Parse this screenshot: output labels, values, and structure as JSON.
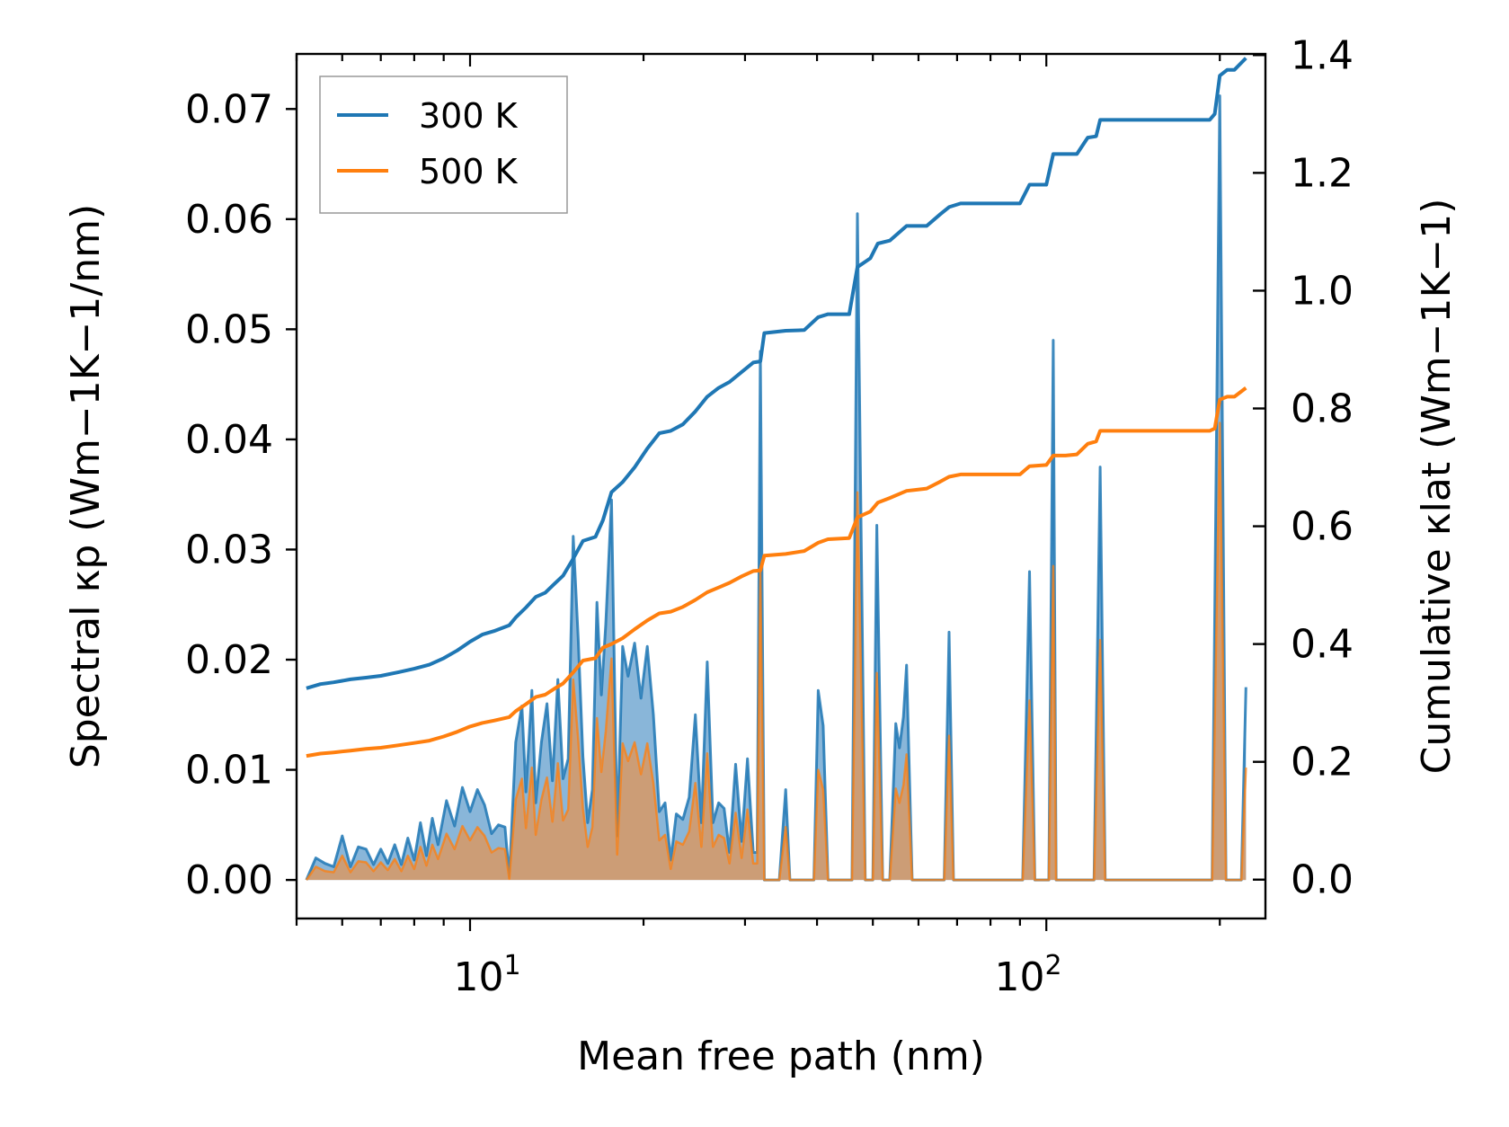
{
  "chart_data": {
    "type": "line",
    "xscale": "log",
    "xlim": [
      5.0,
      240
    ],
    "xlabel": "Mean free path (nm)",
    "ylabel_left": "Spectral κp (Wm−1K−1/nm)",
    "ylabel_right": "Cumulative κlat (Wm−1K−1)",
    "ylim_left": [
      -0.0035,
      0.075
    ],
    "ylim_right": [
      -0.066,
      1.402
    ],
    "yticks_left": [
      "0.00",
      "0.01",
      "0.02",
      "0.03",
      "0.04",
      "0.05",
      "0.06",
      "0.07"
    ],
    "yticks_right": [
      "0.0",
      "0.2",
      "0.4",
      "0.6",
      "0.8",
      "1.0",
      "1.2",
      "1.4"
    ],
    "xticks_major": [
      {
        "value": 10,
        "base": "10",
        "exp": "1"
      },
      {
        "value": 100,
        "base": "10",
        "exp": "2"
      }
    ],
    "colors": {
      "s300": "#1f77b4",
      "s500": "#ff7f0e",
      "fill300": "#4a8fc4",
      "fill500": "#d49a6a"
    },
    "legend": {
      "position": "top-left",
      "entries": [
        "300 K",
        "500 K"
      ]
    },
    "spectral_300K": [
      [
        5.2,
        0.0
      ],
      [
        5.4,
        0.002
      ],
      [
        5.6,
        0.0015
      ],
      [
        5.8,
        0.0012
      ],
      [
        6.0,
        0.004
      ],
      [
        6.2,
        0.0012
      ],
      [
        6.4,
        0.003
      ],
      [
        6.6,
        0.0028
      ],
      [
        6.8,
        0.0014
      ],
      [
        7.0,
        0.0028
      ],
      [
        7.2,
        0.0015
      ],
      [
        7.4,
        0.0032
      ],
      [
        7.6,
        0.0014
      ],
      [
        7.8,
        0.0038
      ],
      [
        8.0,
        0.0018
      ],
      [
        8.2,
        0.0052
      ],
      [
        8.4,
        0.0022
      ],
      [
        8.6,
        0.0056
      ],
      [
        8.8,
        0.0032
      ],
      [
        9.1,
        0.0072
      ],
      [
        9.4,
        0.0049
      ],
      [
        9.7,
        0.0084
      ],
      [
        10.0,
        0.0062
      ],
      [
        10.3,
        0.0082
      ],
      [
        10.6,
        0.0068
      ],
      [
        10.9,
        0.0042
      ],
      [
        11.2,
        0.005
      ],
      [
        11.5,
        0.0048
      ],
      [
        11.7,
        0.0002
      ],
      [
        12.0,
        0.0125
      ],
      [
        12.3,
        0.0158
      ],
      [
        12.5,
        0.008
      ],
      [
        12.8,
        0.0172
      ],
      [
        13.0,
        0.007
      ],
      [
        13.3,
        0.0125
      ],
      [
        13.6,
        0.016
      ],
      [
        13.9,
        0.009
      ],
      [
        14.2,
        0.0182
      ],
      [
        14.5,
        0.0092
      ],
      [
        14.8,
        0.011
      ],
      [
        15.1,
        0.0312
      ],
      [
        15.4,
        0.022
      ],
      [
        15.7,
        0.0112
      ],
      [
        16.0,
        0.0052
      ],
      [
        16.3,
        0.0082
      ],
      [
        16.6,
        0.0252
      ],
      [
        16.9,
        0.0168
      ],
      [
        17.2,
        0.0232
      ],
      [
        17.6,
        0.0345
      ],
      [
        18.0,
        0.004
      ],
      [
        18.4,
        0.0212
      ],
      [
        18.8,
        0.0185
      ],
      [
        19.3,
        0.0215
      ],
      [
        19.8,
        0.0165
      ],
      [
        20.3,
        0.0212
      ],
      [
        20.8,
        0.015
      ],
      [
        21.3,
        0.0062
      ],
      [
        21.8,
        0.007
      ],
      [
        22.3,
        0.0018
      ],
      [
        22.8,
        0.006
      ],
      [
        23.4,
        0.0055
      ],
      [
        24.0,
        0.0075
      ],
      [
        24.6,
        0.015
      ],
      [
        25.2,
        0.0052
      ],
      [
        25.8,
        0.0198
      ],
      [
        26.4,
        0.0052
      ],
      [
        27.0,
        0.007
      ],
      [
        27.6,
        0.0065
      ],
      [
        28.2,
        0.0025
      ],
      [
        28.9,
        0.0105
      ],
      [
        29.6,
        0.0035
      ],
      [
        30.3,
        0.011
      ],
      [
        31.0,
        0.0025
      ],
      [
        31.5,
        0.0025
      ],
      [
        31.9,
        0.048
      ],
      [
        32.4,
        0.0
      ],
      [
        33.3,
        0.0
      ],
      [
        34.4,
        0.0
      ],
      [
        35.3,
        0.0082
      ],
      [
        35.9,
        0.0
      ],
      [
        37.0,
        0.0
      ],
      [
        38.2,
        0.0
      ],
      [
        39.5,
        0.0
      ],
      [
        40.2,
        0.0172
      ],
      [
        41.0,
        0.014
      ],
      [
        41.8,
        0.0
      ],
      [
        43.0,
        0.0
      ],
      [
        44.8,
        0.0
      ],
      [
        46.0,
        0.0
      ],
      [
        47.0,
        0.0605
      ],
      [
        48.5,
        0.0
      ],
      [
        50.0,
        0.0
      ],
      [
        50.8,
        0.0322
      ],
      [
        52.0,
        0.0
      ],
      [
        53.5,
        0.0
      ],
      [
        54.8,
        0.0142
      ],
      [
        55.6,
        0.012
      ],
      [
        56.5,
        0.0148
      ],
      [
        57.2,
        0.0195
      ],
      [
        58.5,
        0.0
      ],
      [
        60.0,
        0.0
      ],
      [
        62.5,
        0.0
      ],
      [
        65.0,
        0.0
      ],
      [
        66.5,
        0.0
      ],
      [
        67.8,
        0.0225
      ],
      [
        69.0,
        0.0
      ],
      [
        71.0,
        0.0
      ],
      [
        80.0,
        0.0
      ],
      [
        88.0,
        0.0
      ],
      [
        91.0,
        0.0
      ],
      [
        93.5,
        0.028
      ],
      [
        95.5,
        0.0
      ],
      [
        99.0,
        0.0
      ],
      [
        101.0,
        0.0
      ],
      [
        102.8,
        0.049
      ],
      [
        104.0,
        0.0
      ],
      [
        108.0,
        0.0
      ],
      [
        113.0,
        0.0
      ],
      [
        117.0,
        0.0
      ],
      [
        121.0,
        0.0
      ],
      [
        124.0,
        0.0375
      ],
      [
        126.5,
        0.0
      ],
      [
        140.0,
        0.0
      ],
      [
        160.0,
        0.0
      ],
      [
        180.0,
        0.0
      ],
      [
        190.0,
        0.0
      ],
      [
        194.0,
        0.0
      ],
      [
        200.0,
        0.0712
      ],
      [
        205.0,
        0.0
      ],
      [
        212.0,
        0.0
      ],
      [
        218.0,
        0.0
      ],
      [
        222.0,
        0.0175
      ]
    ],
    "spectral_500K": [
      [
        5.2,
        0.0
      ],
      [
        5.4,
        0.0012
      ],
      [
        5.6,
        0.0008
      ],
      [
        5.8,
        0.0007
      ],
      [
        6.0,
        0.0022
      ],
      [
        6.2,
        0.0007
      ],
      [
        6.4,
        0.0017
      ],
      [
        6.6,
        0.0016
      ],
      [
        6.8,
        0.0008
      ],
      [
        7.0,
        0.0016
      ],
      [
        7.2,
        0.0009
      ],
      [
        7.4,
        0.0019
      ],
      [
        7.6,
        0.0008
      ],
      [
        7.8,
        0.0022
      ],
      [
        8.0,
        0.001
      ],
      [
        8.2,
        0.003
      ],
      [
        8.4,
        0.0013
      ],
      [
        8.6,
        0.0032
      ],
      [
        8.8,
        0.0019
      ],
      [
        9.1,
        0.0042
      ],
      [
        9.4,
        0.0028
      ],
      [
        9.7,
        0.0049
      ],
      [
        10.0,
        0.0036
      ],
      [
        10.3,
        0.0048
      ],
      [
        10.6,
        0.004
      ],
      [
        10.9,
        0.0025
      ],
      [
        11.2,
        0.0029
      ],
      [
        11.5,
        0.0028
      ],
      [
        11.7,
        0.0001
      ],
      [
        12.0,
        0.0073
      ],
      [
        12.3,
        0.0092
      ],
      [
        12.5,
        0.0047
      ],
      [
        12.8,
        0.0102
      ],
      [
        13.0,
        0.0041
      ],
      [
        13.3,
        0.0073
      ],
      [
        13.6,
        0.0093
      ],
      [
        13.9,
        0.0053
      ],
      [
        14.2,
        0.0106
      ],
      [
        14.5,
        0.0054
      ],
      [
        14.8,
        0.0064
      ],
      [
        15.1,
        0.0182
      ],
      [
        15.4,
        0.0128
      ],
      [
        15.7,
        0.0065
      ],
      [
        16.0,
        0.003
      ],
      [
        16.3,
        0.0048
      ],
      [
        16.6,
        0.0147
      ],
      [
        16.9,
        0.0098
      ],
      [
        17.2,
        0.0135
      ],
      [
        17.6,
        0.0201
      ],
      [
        18.0,
        0.0023
      ],
      [
        18.4,
        0.0124
      ],
      [
        18.8,
        0.0108
      ],
      [
        19.3,
        0.0125
      ],
      [
        19.8,
        0.0096
      ],
      [
        20.3,
        0.0124
      ],
      [
        20.8,
        0.0088
      ],
      [
        21.3,
        0.0036
      ],
      [
        21.8,
        0.0041
      ],
      [
        22.3,
        0.001
      ],
      [
        22.8,
        0.0035
      ],
      [
        23.4,
        0.0032
      ],
      [
        24.0,
        0.0044
      ],
      [
        24.6,
        0.0088
      ],
      [
        25.2,
        0.003
      ],
      [
        25.8,
        0.0115
      ],
      [
        26.4,
        0.003
      ],
      [
        27.0,
        0.0041
      ],
      [
        27.6,
        0.0038
      ],
      [
        28.2,
        0.0015
      ],
      [
        28.9,
        0.0061
      ],
      [
        29.6,
        0.002
      ],
      [
        30.3,
        0.0064
      ],
      [
        31.0,
        0.0015
      ],
      [
        31.5,
        0.0015
      ],
      [
        31.9,
        0.028
      ],
      [
        32.4,
        0.0
      ],
      [
        33.3,
        0.0
      ],
      [
        34.4,
        0.0
      ],
      [
        35.3,
        0.0048
      ],
      [
        35.9,
        0.0
      ],
      [
        37.0,
        0.0
      ],
      [
        38.2,
        0.0
      ],
      [
        39.5,
        0.0
      ],
      [
        40.2,
        0.01
      ],
      [
        41.0,
        0.0082
      ],
      [
        41.8,
        0.0
      ],
      [
        43.0,
        0.0
      ],
      [
        44.8,
        0.0
      ],
      [
        46.0,
        0.0
      ],
      [
        47.0,
        0.0352
      ],
      [
        48.5,
        0.0
      ],
      [
        50.0,
        0.0
      ],
      [
        50.8,
        0.0188
      ],
      [
        52.0,
        0.0
      ],
      [
        53.5,
        0.0
      ],
      [
        54.8,
        0.0083
      ],
      [
        55.6,
        0.007
      ],
      [
        56.5,
        0.0086
      ],
      [
        57.2,
        0.0114
      ],
      [
        58.5,
        0.0
      ],
      [
        60.0,
        0.0
      ],
      [
        62.5,
        0.0
      ],
      [
        65.0,
        0.0
      ],
      [
        66.5,
        0.0
      ],
      [
        67.8,
        0.0131
      ],
      [
        69.0,
        0.0
      ],
      [
        71.0,
        0.0
      ],
      [
        80.0,
        0.0
      ],
      [
        88.0,
        0.0
      ],
      [
        91.0,
        0.0
      ],
      [
        93.5,
        0.0163
      ],
      [
        95.5,
        0.0
      ],
      [
        99.0,
        0.0
      ],
      [
        101.0,
        0.0
      ],
      [
        102.8,
        0.0285
      ],
      [
        104.0,
        0.0
      ],
      [
        108.0,
        0.0
      ],
      [
        113.0,
        0.0
      ],
      [
        117.0,
        0.0
      ],
      [
        121.0,
        0.0
      ],
      [
        124.0,
        0.0218
      ],
      [
        126.5,
        0.0
      ],
      [
        140.0,
        0.0
      ],
      [
        160.0,
        0.0
      ],
      [
        180.0,
        0.0
      ],
      [
        190.0,
        0.0
      ],
      [
        194.0,
        0.0
      ],
      [
        200.0,
        0.0415
      ],
      [
        205.0,
        0.0
      ],
      [
        212.0,
        0.0
      ],
      [
        218.0,
        0.0
      ],
      [
        222.0,
        0.0102
      ]
    ],
    "cumulative_300K": [
      [
        5.2,
        0.325
      ],
      [
        5.5,
        0.332
      ],
      [
        5.8,
        0.335
      ],
      [
        6.2,
        0.34
      ],
      [
        6.6,
        0.343
      ],
      [
        7.0,
        0.346
      ],
      [
        7.5,
        0.352
      ],
      [
        8.0,
        0.358
      ],
      [
        8.5,
        0.365
      ],
      [
        9.0,
        0.376
      ],
      [
        9.5,
        0.389
      ],
      [
        10.0,
        0.404
      ],
      [
        10.5,
        0.416
      ],
      [
        11.0,
        0.422
      ],
      [
        11.7,
        0.432
      ],
      [
        12.0,
        0.445
      ],
      [
        12.5,
        0.462
      ],
      [
        13.0,
        0.48
      ],
      [
        13.5,
        0.487
      ],
      [
        14.0,
        0.502
      ],
      [
        14.5,
        0.516
      ],
      [
        15.1,
        0.545
      ],
      [
        15.7,
        0.575
      ],
      [
        16.5,
        0.582
      ],
      [
        17.0,
        0.61
      ],
      [
        17.6,
        0.658
      ],
      [
        18.4,
        0.675
      ],
      [
        19.3,
        0.7
      ],
      [
        20.3,
        0.732
      ],
      [
        21.3,
        0.758
      ],
      [
        22.3,
        0.762
      ],
      [
        23.4,
        0.773
      ],
      [
        24.6,
        0.795
      ],
      [
        25.8,
        0.82
      ],
      [
        27.0,
        0.835
      ],
      [
        28.2,
        0.845
      ],
      [
        29.6,
        0.862
      ],
      [
        31.0,
        0.878
      ],
      [
        31.9,
        0.88
      ],
      [
        32.4,
        0.928
      ],
      [
        35.3,
        0.932
      ],
      [
        38.0,
        0.933
      ],
      [
        40.2,
        0.955
      ],
      [
        41.8,
        0.96
      ],
      [
        45.5,
        0.96
      ],
      [
        47.0,
        1.04
      ],
      [
        49.5,
        1.055
      ],
      [
        51.0,
        1.08
      ],
      [
        53.5,
        1.085
      ],
      [
        57.2,
        1.11
      ],
      [
        62.0,
        1.11
      ],
      [
        65.5,
        1.13
      ],
      [
        67.8,
        1.142
      ],
      [
        71.0,
        1.148
      ],
      [
        80.0,
        1.148
      ],
      [
        90.0,
        1.148
      ],
      [
        93.5,
        1.18
      ],
      [
        100.0,
        1.18
      ],
      [
        102.8,
        1.232
      ],
      [
        108.0,
        1.232
      ],
      [
        113.0,
        1.232
      ],
      [
        118.0,
        1.26
      ],
      [
        122.0,
        1.262
      ],
      [
        124.0,
        1.29
      ],
      [
        140.0,
        1.29
      ],
      [
        170.0,
        1.29
      ],
      [
        192.0,
        1.29
      ],
      [
        196.0,
        1.3
      ],
      [
        200.0,
        1.365
      ],
      [
        206.0,
        1.375
      ],
      [
        212.0,
        1.375
      ],
      [
        222.0,
        1.395
      ]
    ],
    "cumulative_500K": [
      [
        5.2,
        0.21
      ],
      [
        5.5,
        0.214
      ],
      [
        5.8,
        0.216
      ],
      [
        6.2,
        0.219
      ],
      [
        6.6,
        0.222
      ],
      [
        7.0,
        0.224
      ],
      [
        7.5,
        0.228
      ],
      [
        8.0,
        0.232
      ],
      [
        8.5,
        0.236
      ],
      [
        9.0,
        0.243
      ],
      [
        9.5,
        0.251
      ],
      [
        10.0,
        0.26
      ],
      [
        10.5,
        0.266
      ],
      [
        11.0,
        0.27
      ],
      [
        11.7,
        0.276
      ],
      [
        12.0,
        0.286
      ],
      [
        12.5,
        0.298
      ],
      [
        13.0,
        0.31
      ],
      [
        13.5,
        0.314
      ],
      [
        14.0,
        0.324
      ],
      [
        14.5,
        0.333
      ],
      [
        15.1,
        0.352
      ],
      [
        15.7,
        0.372
      ],
      [
        16.5,
        0.376
      ],
      [
        17.0,
        0.394
      ],
      [
        17.6,
        0.4
      ],
      [
        18.4,
        0.41
      ],
      [
        19.3,
        0.425
      ],
      [
        20.3,
        0.44
      ],
      [
        21.3,
        0.452
      ],
      [
        22.3,
        0.455
      ],
      [
        23.4,
        0.463
      ],
      [
        24.6,
        0.475
      ],
      [
        25.8,
        0.488
      ],
      [
        27.0,
        0.496
      ],
      [
        28.2,
        0.504
      ],
      [
        29.6,
        0.515
      ],
      [
        31.0,
        0.524
      ],
      [
        31.9,
        0.525
      ],
      [
        32.4,
        0.55
      ],
      [
        35.3,
        0.553
      ],
      [
        38.0,
        0.558
      ],
      [
        40.2,
        0.572
      ],
      [
        41.8,
        0.578
      ],
      [
        45.5,
        0.58
      ],
      [
        47.0,
        0.615
      ],
      [
        49.5,
        0.625
      ],
      [
        51.0,
        0.64
      ],
      [
        53.5,
        0.648
      ],
      [
        57.2,
        0.66
      ],
      [
        62.0,
        0.664
      ],
      [
        65.5,
        0.676
      ],
      [
        67.8,
        0.684
      ],
      [
        71.0,
        0.688
      ],
      [
        80.0,
        0.688
      ],
      [
        90.0,
        0.688
      ],
      [
        93.5,
        0.702
      ],
      [
        100.0,
        0.704
      ],
      [
        102.8,
        0.72
      ],
      [
        108.0,
        0.72
      ],
      [
        113.0,
        0.722
      ],
      [
        118.0,
        0.74
      ],
      [
        122.0,
        0.744
      ],
      [
        124.0,
        0.762
      ],
      [
        140.0,
        0.762
      ],
      [
        170.0,
        0.762
      ],
      [
        192.0,
        0.762
      ],
      [
        196.0,
        0.766
      ],
      [
        200.0,
        0.815
      ],
      [
        206.0,
        0.82
      ],
      [
        212.0,
        0.82
      ],
      [
        222.0,
        0.835
      ]
    ]
  }
}
